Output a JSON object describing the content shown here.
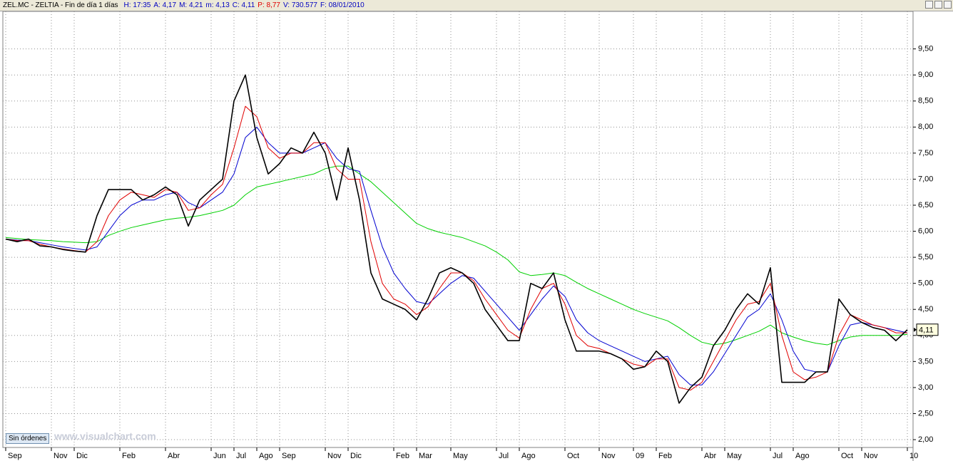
{
  "header": {
    "title": "ZEL.MC - ZELTIA - Fin de día 1 días",
    "items": [
      {
        "text": "H: 17:35",
        "color": "#0000c0"
      },
      {
        "text": "A: 4,17",
        "color": "#0000c0"
      },
      {
        "text": "M: 4,21",
        "color": "#0000c0"
      },
      {
        "text": "m: 4,13",
        "color": "#0000c0"
      },
      {
        "text": "C: 4,11",
        "color": "#0000c0"
      },
      {
        "text": "P: 8,77",
        "color": "#e00000"
      },
      {
        "text": "V: 730.577",
        "color": "#0000c0"
      },
      {
        "text": "F: 08/01/2010",
        "color": "#0000c0"
      }
    ]
  },
  "order_button": "Sin órdenes",
  "watermark": "www.visualchart.com",
  "chart_data": {
    "type": "line",
    "categories": [
      "Sep",
      null,
      null,
      null,
      "Nov",
      null,
      "Dic",
      null,
      null,
      null,
      "Feb",
      null,
      null,
      null,
      "Abr",
      null,
      null,
      null,
      "Jun",
      null,
      "Jul",
      null,
      "Ago",
      null,
      "Sep",
      null,
      null,
      null,
      "Nov",
      null,
      "Dic",
      null,
      null,
      null,
      "Feb",
      null,
      "Mar",
      null,
      null,
      "May",
      null,
      null,
      null,
      "Jul",
      null,
      "Ago",
      null,
      null,
      null,
      "Oct",
      null,
      null,
      "Nov",
      null,
      null,
      "09",
      null,
      "Feb",
      null,
      null,
      null,
      "Abr",
      null,
      "May",
      null,
      null,
      null,
      "Jul",
      null,
      "Ago",
      null,
      null,
      null,
      "Oct",
      null,
      "Nov",
      null,
      null,
      null,
      "10"
    ],
    "series": [
      {
        "color": "#000000",
        "width": 1.6,
        "values": [
          5.85,
          5.8,
          5.85,
          5.72,
          5.7,
          5.65,
          5.62,
          5.6,
          6.3,
          6.8,
          6.8,
          6.8,
          6.6,
          6.7,
          6.85,
          6.7,
          6.1,
          6.6,
          6.8,
          7.0,
          8.5,
          9.0,
          7.8,
          7.1,
          7.3,
          7.6,
          7.5,
          7.9,
          7.5,
          6.6,
          7.6,
          6.6,
          5.2,
          4.7,
          4.6,
          4.5,
          4.3,
          4.7,
          5.2,
          5.3,
          5.2,
          5.0,
          4.5,
          4.2,
          3.9,
          3.9,
          5.0,
          4.9,
          5.2,
          4.3,
          3.7,
          3.7,
          3.7,
          3.65,
          3.55,
          3.35,
          3.4,
          3.7,
          3.5,
          2.7,
          3.0,
          3.2,
          3.8,
          4.1,
          4.5,
          4.8,
          4.6,
          5.3,
          3.1,
          3.1,
          3.1,
          3.3,
          3.3,
          4.7,
          4.4,
          4.25,
          4.15,
          4.1,
          3.9,
          4.11
        ]
      },
      {
        "color": "#e00000",
        "width": 1,
        "values": [
          5.85,
          5.82,
          5.82,
          5.75,
          5.7,
          5.66,
          5.63,
          5.6,
          5.8,
          6.3,
          6.6,
          6.75,
          6.7,
          6.65,
          6.8,
          6.75,
          6.4,
          6.45,
          6.7,
          6.9,
          7.6,
          8.4,
          8.2,
          7.6,
          7.4,
          7.5,
          7.5,
          7.7,
          7.7,
          7.2,
          7.0,
          7.0,
          5.8,
          5.0,
          4.7,
          4.6,
          4.4,
          4.55,
          4.9,
          5.2,
          5.2,
          5.05,
          4.7,
          4.4,
          4.1,
          3.95,
          4.5,
          4.9,
          5.0,
          4.6,
          4.0,
          3.8,
          3.75,
          3.65,
          3.55,
          3.45,
          3.4,
          3.55,
          3.55,
          3.0,
          2.95,
          3.1,
          3.5,
          3.9,
          4.3,
          4.6,
          4.65,
          5.0,
          4.0,
          3.3,
          3.15,
          3.2,
          3.3,
          4.0,
          4.4,
          4.3,
          4.2,
          4.15,
          4.05,
          4.05
        ]
      },
      {
        "color": "#0000d0",
        "width": 1,
        "values": [
          5.85,
          5.83,
          5.82,
          5.78,
          5.74,
          5.7,
          5.67,
          5.64,
          5.7,
          6.0,
          6.3,
          6.5,
          6.6,
          6.6,
          6.7,
          6.75,
          6.55,
          6.45,
          6.6,
          6.75,
          7.1,
          7.8,
          8.0,
          7.7,
          7.5,
          7.5,
          7.5,
          7.6,
          7.7,
          7.4,
          7.2,
          7.15,
          6.4,
          5.7,
          5.2,
          4.9,
          4.65,
          4.6,
          4.8,
          5.0,
          5.15,
          5.1,
          4.85,
          4.6,
          4.35,
          4.1,
          4.4,
          4.7,
          4.95,
          4.75,
          4.3,
          4.05,
          3.9,
          3.8,
          3.7,
          3.6,
          3.5,
          3.55,
          3.6,
          3.25,
          3.05,
          3.05,
          3.3,
          3.65,
          4.0,
          4.35,
          4.5,
          4.8,
          4.3,
          3.7,
          3.35,
          3.3,
          3.3,
          3.8,
          4.2,
          4.25,
          4.2,
          4.15,
          4.1,
          4.05
        ]
      },
      {
        "color": "#00d000",
        "width": 1,
        "values": [
          5.88,
          5.86,
          5.84,
          5.83,
          5.82,
          5.8,
          5.79,
          5.78,
          5.8,
          5.92,
          6.0,
          6.07,
          6.12,
          6.17,
          6.22,
          6.25,
          6.27,
          6.3,
          6.35,
          6.4,
          6.5,
          6.7,
          6.85,
          6.9,
          6.95,
          7.0,
          7.05,
          7.1,
          7.2,
          7.25,
          7.25,
          7.1,
          6.95,
          6.75,
          6.55,
          6.35,
          6.15,
          6.05,
          5.98,
          5.93,
          5.88,
          5.8,
          5.72,
          5.6,
          5.45,
          5.22,
          5.15,
          5.17,
          5.2,
          5.15,
          5.02,
          4.9,
          4.8,
          4.7,
          4.6,
          4.5,
          4.42,
          4.35,
          4.28,
          4.15,
          4.0,
          3.87,
          3.82,
          3.85,
          3.92,
          4.0,
          4.08,
          4.2,
          4.05,
          3.97,
          3.9,
          3.85,
          3.82,
          3.9,
          3.97,
          4.0,
          4.0,
          4.0,
          4.0,
          4.02
        ]
      }
    ],
    "last_price": {
      "value": 4.11,
      "label": "4,11"
    },
    "ylim": [
      1.85,
      10.22
    ],
    "yticks": [
      {
        "value": 2,
        "label": "2,00"
      },
      {
        "value": 2.5,
        "label": "2,50"
      },
      {
        "value": 3,
        "label": "3,00"
      },
      {
        "value": 3.5,
        "label": "3,50"
      },
      {
        "value": 4,
        "label": "4,00"
      },
      {
        "value": 4.5,
        "label": "4,50"
      },
      {
        "value": 5,
        "label": "5,00"
      },
      {
        "value": 5.5,
        "label": "5,50"
      },
      {
        "value": 6,
        "label": "6,00"
      },
      {
        "value": 6.5,
        "label": "6,50"
      },
      {
        "value": 7,
        "label": "7,00"
      },
      {
        "value": 7.5,
        "label": "7,50"
      },
      {
        "value": 8,
        "label": "8,00"
      },
      {
        "value": 8.5,
        "label": "8,50"
      },
      {
        "value": 9,
        "label": "9,00"
      },
      {
        "value": 9.5,
        "label": "9,50"
      }
    ],
    "grid": true
  }
}
